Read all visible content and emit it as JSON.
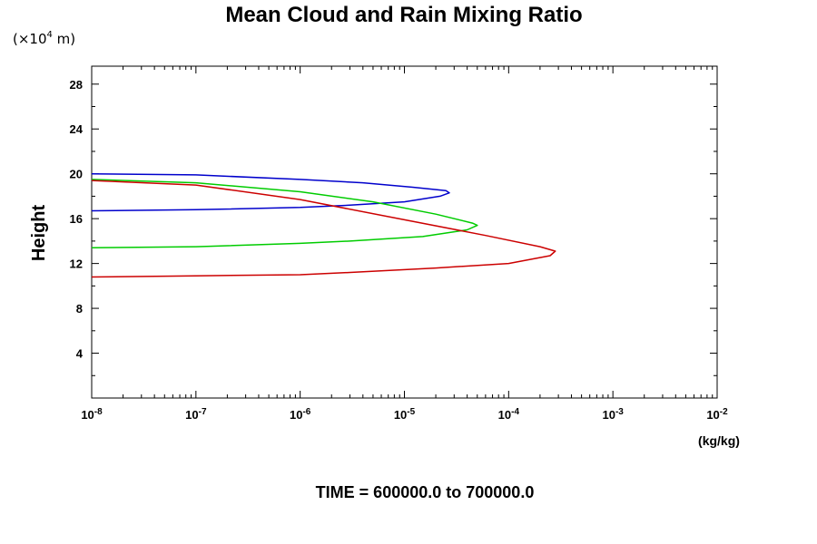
{
  "chart_data": {
    "type": "line",
    "title": "Mean Cloud and Rain Mixing Ratio",
    "y_unit_label": "(×10",
    "y_unit_exp": "4",
    "y_unit_suffix": " m)",
    "ylabel": "Height",
    "xlabel": "(kg/kg)",
    "subtitle": "TIME = 600000.0 to 700000.0",
    "xscale": "log",
    "xlim": [
      1e-08,
      0.01
    ],
    "ylim": [
      0,
      29.6
    ],
    "x_ticks": [
      {
        "base": "10",
        "exp": "-8"
      },
      {
        "base": "10",
        "exp": "-7"
      },
      {
        "base": "10",
        "exp": "-6"
      },
      {
        "base": "10",
        "exp": "-5"
      },
      {
        "base": "10",
        "exp": "-4"
      },
      {
        "base": "10",
        "exp": "-3"
      },
      {
        "base": "10",
        "exp": "-2"
      }
    ],
    "y_ticks": [
      "4",
      "8",
      "12",
      "16",
      "20",
      "24",
      "28"
    ],
    "grid": false,
    "series": [
      {
        "color": "#0000cc",
        "x": [
          1e-08,
          1e-07,
          1e-06,
          4e-06,
          1.2e-05,
          2.5e-05,
          2.7e-05,
          2.2e-05,
          1e-05,
          3e-06,
          1e-06,
          1e-07,
          1e-08
        ],
        "y": [
          20.0,
          19.9,
          19.5,
          19.2,
          18.8,
          18.5,
          18.3,
          18.0,
          17.5,
          17.2,
          17.0,
          16.8,
          16.7
        ]
      },
      {
        "color": "#00cc00",
        "x": [
          1e-08,
          1e-07,
          1e-06,
          5e-06,
          2e-05,
          4.5e-05,
          5e-05,
          4e-05,
          1.5e-05,
          3e-06,
          1e-06,
          1e-07,
          1e-08
        ],
        "y": [
          19.5,
          19.2,
          18.4,
          17.5,
          16.4,
          15.6,
          15.4,
          15.0,
          14.4,
          14.0,
          13.8,
          13.5,
          13.4
        ]
      },
      {
        "color": "#cc0000",
        "x": [
          1e-08,
          1e-07,
          1e-06,
          1e-05,
          6e-05,
          0.0002,
          0.00028,
          0.00025,
          0.0001,
          2e-05,
          3e-06,
          1e-06,
          1e-07,
          1e-08
        ],
        "y": [
          19.4,
          19.0,
          17.7,
          15.9,
          14.5,
          13.5,
          13.1,
          12.7,
          12.0,
          11.6,
          11.2,
          11.0,
          10.9,
          10.8
        ]
      }
    ]
  }
}
